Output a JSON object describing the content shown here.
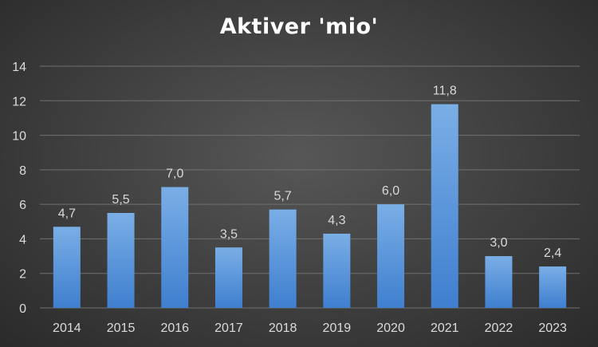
{
  "chart_data": {
    "type": "bar",
    "title": "Aktiver 'mio'",
    "xlabel": "",
    "ylabel": "",
    "categories": [
      "2014",
      "2015",
      "2016",
      "2017",
      "2018",
      "2019",
      "2020",
      "2021",
      "2022",
      "2023"
    ],
    "values": [
      4.7,
      5.5,
      7.0,
      3.5,
      5.7,
      4.3,
      6.0,
      11.8,
      3.0,
      2.4
    ],
    "value_labels": [
      "4,7",
      "5,5",
      "7,0",
      "3,5",
      "5,7",
      "4,3",
      "6,0",
      "11,8",
      "3,0",
      "2,4"
    ],
    "ylim": [
      0,
      14
    ],
    "yticks": [
      0,
      2,
      4,
      6,
      8,
      10,
      12,
      14
    ],
    "grid": true,
    "legend": "none",
    "colors": {
      "bar_top": "#7aaee6",
      "bar_bottom": "#3f7fcf",
      "grid": "#707070",
      "background": "#404040",
      "text": "#d9d9d9"
    }
  }
}
